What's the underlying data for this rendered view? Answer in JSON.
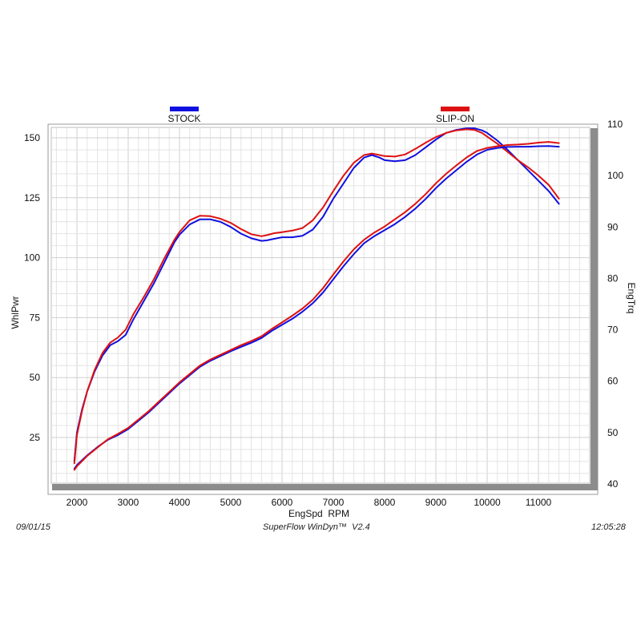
{
  "footer": {
    "date": "09/01/15",
    "software": "SuperFlow WinDyn™  V2.4",
    "time": "12:05:28"
  },
  "chart_data": {
    "type": "line",
    "xlabel": "EngSpd  RPM",
    "ylabel_left": "WhlPwr",
    "ylabel_right": "EngTrq",
    "xlim": [
      1500,
      12000
    ],
    "ylim_left": [
      10,
      155
    ],
    "ylim_right": [
      40,
      110
    ],
    "x_ticks": [
      2000,
      3000,
      4000,
      5000,
      6000,
      7000,
      8000,
      9000,
      10000,
      11000
    ],
    "y_ticks_left": [
      25,
      50,
      75,
      100,
      125,
      150
    ],
    "y_ticks_right": [
      40,
      50,
      60,
      70,
      80,
      90,
      100,
      110
    ],
    "grid": true,
    "legend": [
      {
        "name": "STOCK",
        "color": "#1010e0",
        "position": "top-left"
      },
      {
        "name": "SLIP-ON",
        "color": "#dd1111",
        "position": "top-right"
      }
    ],
    "series": [
      {
        "name": "STOCK",
        "metric": "EngTrq",
        "axis": "right",
        "color": "#1010e0",
        "x": [
          1950,
          2000,
          2100,
          2200,
          2350,
          2500,
          2650,
          2800,
          2950,
          3100,
          3300,
          3500,
          3700,
          3900,
          4000,
          4200,
          4400,
          4600,
          4800,
          5000,
          5200,
          5400,
          5600,
          5700,
          5850,
          6000,
          6200,
          6400,
          6600,
          6800,
          7000,
          7200,
          7400,
          7600,
          7750,
          7900,
          8000,
          8200,
          8400,
          8600,
          8800,
          9000,
          9200,
          9400,
          9600,
          9750,
          9900,
          10000,
          10200,
          10400,
          10600,
          10800,
          11000,
          11200,
          11400
        ],
        "y": [
          44.5,
          50,
          54.5,
          58,
          62,
          65,
          67,
          67.8,
          69,
          72,
          75.5,
          79,
          83,
          87,
          88.5,
          90.5,
          91.5,
          91.5,
          91,
          90,
          88.7,
          87.8,
          87.3,
          87.4,
          87.7,
          88,
          88,
          88.3,
          89.5,
          92,
          95.5,
          98.5,
          101.5,
          103.5,
          104,
          103.5,
          103,
          102.8,
          103,
          104,
          105.5,
          107,
          108.3,
          108.9,
          109.2,
          109.2,
          108.8,
          108.3,
          106.8,
          105,
          103,
          101,
          99,
          97,
          94.5
        ]
      },
      {
        "name": "SLIP-ON",
        "metric": "EngTrq",
        "axis": "right",
        "color": "#dd1111",
        "x": [
          1950,
          2000,
          2100,
          2200,
          2350,
          2500,
          2650,
          2800,
          2950,
          3100,
          3300,
          3500,
          3700,
          3900,
          4000,
          4200,
          4400,
          4600,
          4800,
          5000,
          5200,
          5400,
          5600,
          5700,
          5850,
          6000,
          6200,
          6400,
          6600,
          6800,
          7000,
          7200,
          7400,
          7600,
          7750,
          7900,
          8000,
          8200,
          8400,
          8600,
          8800,
          9000,
          9200,
          9400,
          9600,
          9750,
          9900,
          10000,
          10200,
          10400,
          10600,
          10800,
          11000,
          11200,
          11400
        ],
        "y": [
          44,
          49.5,
          54.2,
          58,
          62.3,
          65.5,
          67.5,
          68.5,
          70,
          73,
          76.3,
          79.8,
          83.8,
          87.5,
          89,
          91.3,
          92.2,
          92.1,
          91.6,
          90.8,
          89.6,
          88.6,
          88.2,
          88.4,
          88.8,
          89,
          89.3,
          89.8,
          91.3,
          93.8,
          97,
          100,
          102.5,
          104,
          104.3,
          104,
          103.8,
          103.7,
          104.1,
          105.2,
          106.4,
          107.5,
          108.3,
          108.8,
          109,
          108.9,
          108.3,
          107.6,
          106.2,
          104.6,
          103,
          101.6,
          100,
          98.2,
          95.5
        ]
      },
      {
        "name": "STOCK",
        "metric": "WhlPwr",
        "axis": "left",
        "color": "#1010e0",
        "x": [
          1950,
          2000,
          2200,
          2400,
          2600,
          2800,
          3000,
          3200,
          3400,
          3600,
          3800,
          4000,
          4200,
          4400,
          4600,
          4800,
          5000,
          5200,
          5400,
          5600,
          5800,
          6000,
          6200,
          6400,
          6600,
          6800,
          7000,
          7200,
          7400,
          7600,
          7800,
          8000,
          8200,
          8400,
          8600,
          8800,
          9000,
          9200,
          9400,
          9600,
          9800,
          10000,
          10200,
          10400,
          10600,
          10800,
          11000,
          11200,
          11400
        ],
        "y": [
          12,
          13.5,
          17.5,
          21,
          24,
          26,
          28.5,
          32,
          35.5,
          39.5,
          43.5,
          47.5,
          51,
          54.5,
          57,
          59,
          61,
          62.8,
          64.5,
          66.5,
          69.5,
          72,
          74.5,
          77.5,
          81,
          85.5,
          91,
          96.5,
          101.5,
          106,
          109,
          111.5,
          114,
          117,
          120.5,
          124.5,
          129,
          133,
          136.5,
          140,
          143,
          145,
          145.8,
          146.2,
          146.3,
          146.3,
          146.5,
          146.6,
          146.3
        ]
      },
      {
        "name": "SLIP-ON",
        "metric": "WhlPwr",
        "axis": "left",
        "color": "#dd1111",
        "x": [
          1950,
          2000,
          2200,
          2400,
          2600,
          2800,
          3000,
          3200,
          3400,
          3600,
          3800,
          4000,
          4200,
          4400,
          4600,
          4800,
          5000,
          5200,
          5400,
          5600,
          5800,
          6000,
          6200,
          6400,
          6600,
          6800,
          7000,
          7200,
          7400,
          7600,
          7800,
          8000,
          8200,
          8400,
          8600,
          8800,
          9000,
          9200,
          9400,
          9600,
          9800,
          10000,
          10200,
          10400,
          10600,
          10800,
          11000,
          11200,
          11400
        ],
        "y": [
          11.5,
          13,
          17.3,
          20.8,
          24.2,
          26.5,
          29,
          32.5,
          36,
          40,
          44,
          48,
          51.5,
          55,
          57.5,
          59.5,
          61.5,
          63.5,
          65.2,
          67.2,
          70.3,
          73,
          75.8,
          78.8,
          82.5,
          87.3,
          93,
          98.5,
          103.5,
          107.5,
          110.5,
          113,
          116,
          119,
          122.5,
          126.5,
          131,
          135,
          138.5,
          141.8,
          144.5,
          145.8,
          146.5,
          147,
          147.2,
          147.5,
          148,
          148.3,
          147.8
        ]
      }
    ]
  }
}
